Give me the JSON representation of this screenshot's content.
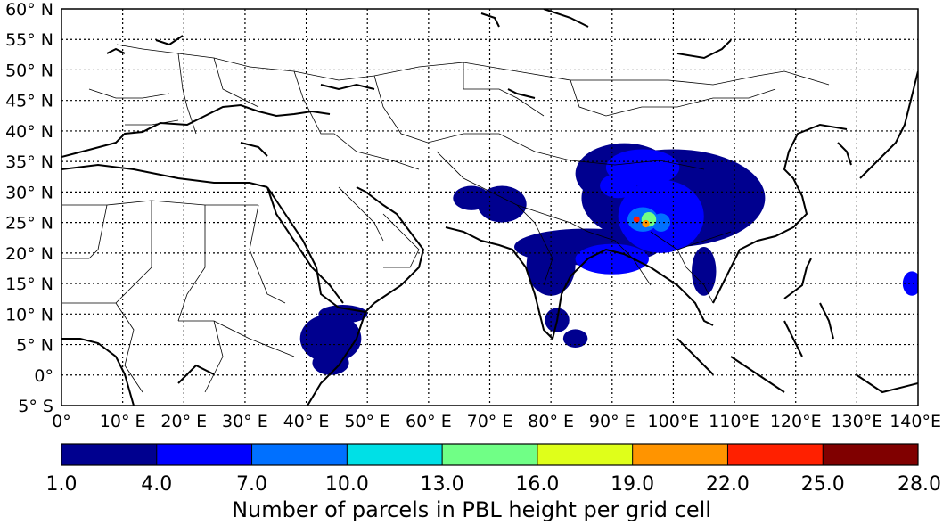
{
  "map": {
    "lat_labels": [
      "60° N",
      "55° N",
      "50° N",
      "45° N",
      "40° N",
      "35° N",
      "30° N",
      "25° N",
      "20° N",
      "15° N",
      "10° N",
      "5° N",
      "0°",
      "5° S"
    ],
    "lat_values": [
      60,
      55,
      50,
      45,
      40,
      35,
      30,
      25,
      20,
      15,
      10,
      5,
      0,
      -5
    ],
    "lon_labels": [
      "0°",
      "10° E",
      "20° E",
      "30° E",
      "40° E",
      "50° E",
      "60° E",
      "70° E",
      "80° E",
      "90° E",
      "100°E",
      "110°E",
      "120°E",
      "130°E",
      "140°E"
    ],
    "lon_values": [
      0,
      10,
      20,
      30,
      40,
      50,
      60,
      70,
      80,
      90,
      100,
      110,
      120,
      130,
      140
    ],
    "lon_range": [
      0,
      140
    ],
    "lat_range": [
      -5,
      60
    ],
    "graticule": "dotted"
  },
  "colorbar": {
    "ticks": [
      "1.0",
      "4.0",
      "7.0",
      "10.0",
      "13.0",
      "16.0",
      "19.0",
      "22.0",
      "25.0",
      "28.0"
    ],
    "colors": [
      "#00008f",
      "#0000ff",
      "#0070ff",
      "#00e0e6",
      "#70ff86",
      "#dfff1a",
      "#ff9400",
      "#ff2000",
      "#800000"
    ],
    "label": "Number of parcels in PBL height per grid cell"
  },
  "blobs": [
    {
      "lon": 100,
      "lat": 29,
      "rx": 15,
      "ry": 8,
      "level": 0
    },
    {
      "lon": 92,
      "lat": 33,
      "rx": 8,
      "ry": 5,
      "level": 0
    },
    {
      "lon": 86,
      "lat": 21,
      "rx": 12,
      "ry": 3,
      "level": 0
    },
    {
      "lon": 80,
      "lat": 18,
      "rx": 4,
      "ry": 5,
      "level": 0
    },
    {
      "lon": 72,
      "lat": 28,
      "rx": 4,
      "ry": 3,
      "level": 0
    },
    {
      "lon": 67,
      "lat": 29,
      "rx": 3,
      "ry": 2,
      "level": 0
    },
    {
      "lon": 44,
      "lat": 6,
      "rx": 5,
      "ry": 4,
      "level": 0
    },
    {
      "lon": 46,
      "lat": 10,
      "rx": 4,
      "ry": 1.5,
      "level": 0
    },
    {
      "lon": 44,
      "lat": 2,
      "rx": 3,
      "ry": 2,
      "level": 0
    },
    {
      "lon": 81,
      "lat": 9,
      "rx": 2,
      "ry": 2,
      "level": 0
    },
    {
      "lon": 84,
      "lat": 6,
      "rx": 2,
      "ry": 1.5,
      "level": 0
    },
    {
      "lon": 105,
      "lat": 17,
      "rx": 2,
      "ry": 4,
      "level": 0
    },
    {
      "lon": 139,
      "lat": 15,
      "rx": 1.5,
      "ry": 2,
      "level": 1
    },
    {
      "lon": 98,
      "lat": 26,
      "rx": 7,
      "ry": 6,
      "level": 1
    },
    {
      "lon": 90,
      "lat": 19,
      "rx": 6,
      "ry": 2.5,
      "level": 1
    },
    {
      "lon": 95,
      "lat": 34,
      "rx": 6,
      "ry": 3,
      "level": 1
    },
    {
      "lon": 91,
      "lat": 31,
      "rx": 3,
      "ry": 2,
      "level": 1
    },
    {
      "lon": 95,
      "lat": 25.5,
      "rx": 2.5,
      "ry": 2,
      "level": 2
    },
    {
      "lon": 98,
      "lat": 25,
      "rx": 1.5,
      "ry": 1.5,
      "level": 2
    },
    {
      "lon": 96,
      "lat": 25.5,
      "rx": 1.2,
      "ry": 1.2,
      "level": 4
    },
    {
      "lon": 95.5,
      "lat": 24.8,
      "rx": 0.6,
      "ry": 0.6,
      "level": 6
    },
    {
      "lon": 94,
      "lat": 25.5,
      "rx": 0.5,
      "ry": 0.5,
      "level": 7
    }
  ]
}
